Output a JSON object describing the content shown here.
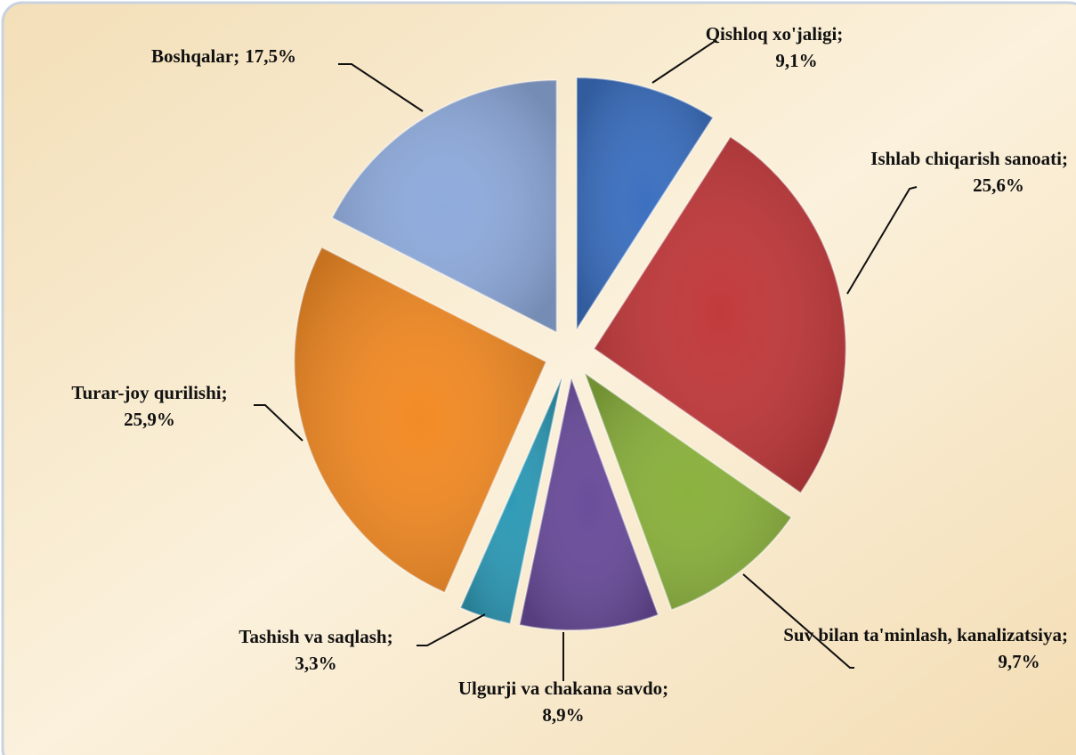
{
  "chart_data": {
    "type": "pie",
    "categories": [
      "Qishloq xo'jaligi;",
      "Ishlab chiqarish sanoati;",
      "Suv bilan ta'minlash, kanalizatsiya;",
      "Ulgurji va chakana savdo;",
      "Tashish va saqlash;",
      "Turar-joy qurilishi;",
      "Boshqalar;"
    ],
    "values": [
      9.1,
      25.6,
      9.7,
      8.9,
      3.3,
      25.9,
      17.5
    ],
    "value_labels": [
      "9,1%",
      "25,6%",
      "9,7%",
      "8,9%",
      "3,3%",
      "25,9%",
      "17,5%"
    ],
    "colors": [
      "#3c70c0",
      "#c13a3c",
      "#8bb13e",
      "#6a4d9b",
      "#2f9ab6",
      "#f28b26",
      "#8fabdc"
    ]
  }
}
